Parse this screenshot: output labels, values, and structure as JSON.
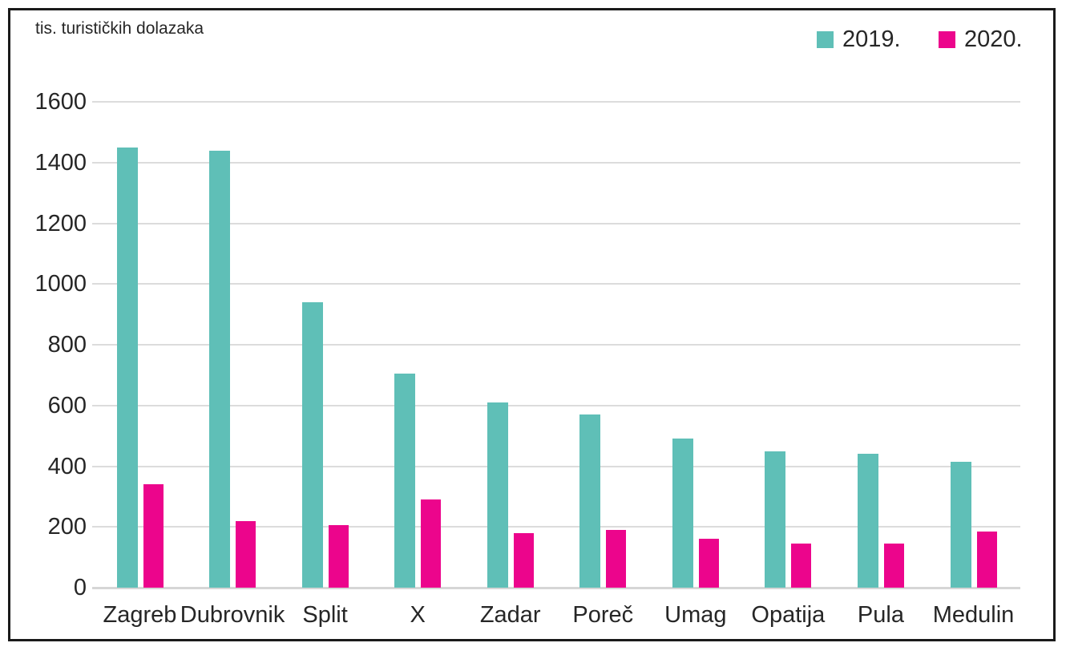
{
  "chart_data": {
    "type": "bar",
    "title": "tis. turističkih dolazaka",
    "categories": [
      "Zagreb",
      "Dubrovnik",
      "Split",
      "X",
      "Zadar",
      "Poreč",
      "Umag",
      "Opatija",
      "Pula",
      "Medulin"
    ],
    "series": [
      {
        "name": "2019.",
        "color": "#5fbfb7",
        "values": [
          1450,
          1440,
          940,
          705,
          610,
          570,
          490,
          450,
          440,
          415
        ]
      },
      {
        "name": "2020.",
        "color": "#ec058c",
        "values": [
          340,
          220,
          205,
          290,
          180,
          190,
          160,
          145,
          145,
          185
        ]
      }
    ],
    "ylim": [
      0,
      1600
    ],
    "yticks": [
      0,
      200,
      400,
      600,
      800,
      1000,
      1200,
      1400,
      1600
    ],
    "grid": "horizontal",
    "legend_position": "top-right",
    "xlabel": "",
    "ylabel": ""
  },
  "style_colors": {
    "gridline": "#dcdcdc",
    "baseline": "#d6d6d6",
    "text": "#262626",
    "frame_border": "#1a1a1a"
  }
}
